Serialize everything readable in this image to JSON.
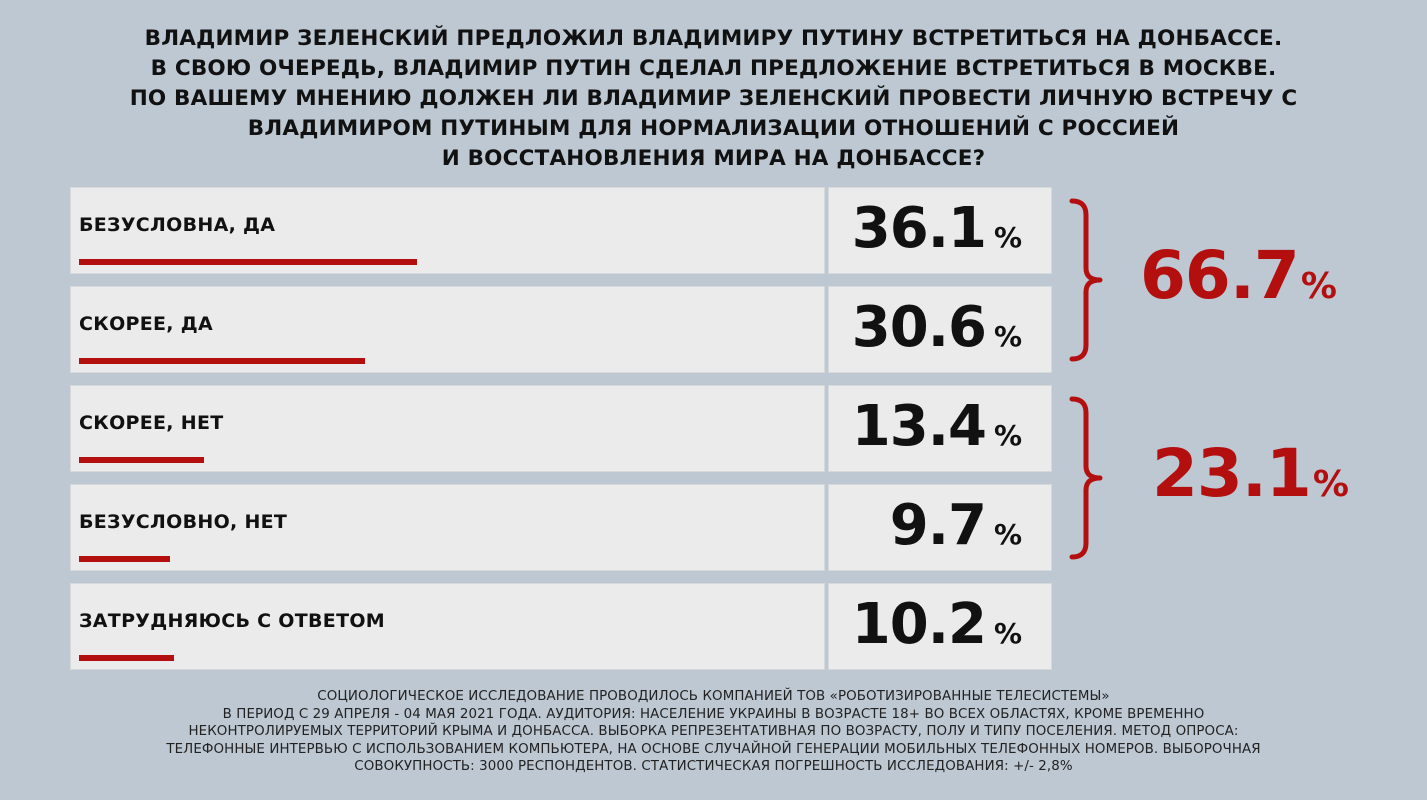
{
  "title_lines": [
    "ВЛАДИМИР ЗЕЛЕНСКИЙ ПРЕДЛОЖИЛ ВЛАДИМИРУ ПУТИНУ ВСТРЕТИТЬСЯ НА ДОНБАССЕ.",
    "В СВОЮ ОЧЕРЕДЬ, ВЛАДИМИР ПУТИН СДЕЛАЛ ПРЕДЛОЖЕНИЕ ВСТРЕТИТЬСЯ В МОСКВЕ.",
    "ПО ВАШЕМУ МНЕНИЮ ДОЛЖЕН ЛИ ВЛАДИМИР ЗЕЛЕНСКИЙ ПРОВЕСТИ ЛИЧНУЮ ВСТРЕЧУ С",
    "ВЛАДИМИРОМ ПУТИНЫМ ДЛЯ НОРМАЛИЗАЦИИ ОТНОШЕНИЙ С РОССИЕЙ",
    "И ВОССТАНОВЛЕНИЯ МИРА НА ДОНБАССЕ?"
  ],
  "chart_data": {
    "type": "bar",
    "title": "ВЛАДИМИР ЗЕЛЕНСКИЙ ПРЕДЛОЖИЛ ВЛАДИМИРУ ПУТИНУ ВСТРЕТИТЬСЯ НА ДОНБАССЕ. В СВОЮ ОЧЕРЕДЬ, ВЛАДИМИР ПУТИН СДЕЛАЛ ПРЕДЛОЖЕНИЕ ВСТРЕТИТЬСЯ В МОСКВЕ. ПО ВАШЕМУ МНЕНИЮ ДОЛЖЕН ЛИ ВЛАДИМИР ЗЕЛЕНСКИЙ ПРОВЕСТИ ЛИЧНУЮ ВСТРЕЧУ С ВЛАДИМИРОМ ПУТИНЫМ ДЛЯ НОРМАЛИЗАЦИИ ОТНОШЕНИЙ С РОССИЕЙ И ВОССТАНОВЛЕНИЯ МИРА НА ДОНБАССЕ?",
    "categories": [
      "БЕЗУСЛОВНА, ДА",
      "СКОРЕЕ, ДА",
      "СКОРЕЕ, НЕТ",
      "БЕЗУСЛОВНО, НЕТ",
      "ЗАТРУДНЯЮСЬ С ОТВЕТОМ"
    ],
    "values": [
      36.1,
      30.6,
      13.4,
      9.7,
      10.2
    ],
    "value_labels": [
      "36.1",
      "30.6",
      "13.4",
      "9.7",
      "10.2"
    ],
    "unit": "%",
    "xlim": [
      0,
      100
    ],
    "groups": [
      {
        "members": [
          0,
          1
        ],
        "total": "66.7"
      },
      {
        "members": [
          2,
          3
        ],
        "total": "23.1"
      }
    ]
  },
  "colors": {
    "background": "#bdc8d3",
    "panel": "#ebebeb",
    "accent": "#b40f0f",
    "text": "#111111"
  },
  "footer_lines": [
    "СОЦИОЛОГИЧЕСКОЕ ИССЛЕДОВАНИЕ ПРОВОДИЛОСЬ КОМПАНИЕЙ ТОВ «РОБОТИЗИРОВАННЫЕ ТЕЛЕСИСТЕМЫ»",
    "В ПЕРИОД С 29 АПРЕЛЯ - 04 МАЯ 2021 ГОДА. АУДИТОРИЯ: НАСЕЛЕНИЕ УКРАИНЫ В ВОЗРАСТЕ 18+ ВО ВСЕХ ОБЛАСТЯХ, КРОМЕ ВРЕМЕННО",
    "НЕКОНТРОЛИРУЕМЫХ ТЕРРИТОРИЙ КРЫМА И ДОНБАССА. ВЫБОРКА РЕПРЕЗЕНТАТИВНАЯ ПО ВОЗРАСТУ, ПОЛУ И ТИПУ ПОСЕЛЕНИЯ. МЕТОД ОПРОСА:",
    "ТЕЛЕФОННЫЕ ИНТЕРВЬЮ С ИСПОЛЬЗОВАНИЕМ КОМПЬЮТЕРА, НА ОСНОВЕ СЛУЧАЙНОЙ ГЕНЕРАЦИИ МОБИЛЬНЫХ ТЕЛЕФОННЫХ НОМЕРОВ. ВЫБОРОЧНАЯ",
    "СОВОКУПНОСТЬ: 3000 РЕСПОНДЕНТОВ. СТАТИСТИЧЕСКАЯ ПОГРЕШНОСТЬ ИССЛЕДОВАНИЯ: +/- 2,8%"
  ]
}
